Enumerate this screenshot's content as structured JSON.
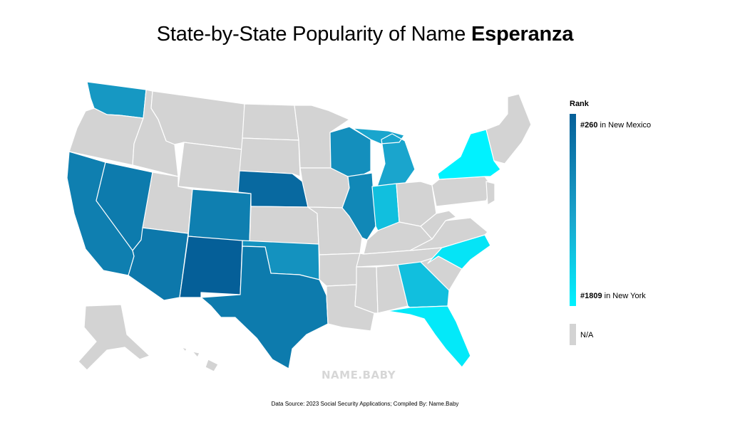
{
  "title": {
    "prefix": "State-by-State Popularity of Name",
    "name": "Esperanza"
  },
  "legend": {
    "heading": "Rank",
    "top": {
      "rank": "#260",
      "text": "in New Mexico"
    },
    "bottom": {
      "rank": "#1809",
      "text": "in New York"
    },
    "na": "N/A"
  },
  "watermark": "NAME.BABY",
  "source": "Data Source: 2023 Social Security Applications; Compiled By: Name.Baby",
  "colors": {
    "na": "#d3d3d3",
    "top": "#055f98",
    "bottom": "#00f2ff"
  },
  "rank_range": [
    260,
    1809
  ],
  "states": [
    {
      "id": "WA",
      "name": "Washington",
      "intensity": 0.55
    },
    {
      "id": "OR",
      "name": "Oregon",
      "intensity": null
    },
    {
      "id": "CA",
      "name": "California",
      "intensity": 0.75
    },
    {
      "id": "NV",
      "name": "Nevada",
      "intensity": 0.78
    },
    {
      "id": "ID",
      "name": "Idaho",
      "intensity": null
    },
    {
      "id": "MT",
      "name": "Montana",
      "intensity": null
    },
    {
      "id": "WY",
      "name": "Wyoming",
      "intensity": null
    },
    {
      "id": "UT",
      "name": "Utah",
      "intensity": null
    },
    {
      "id": "AZ",
      "name": "Arizona",
      "intensity": 0.8
    },
    {
      "id": "CO",
      "name": "Colorado",
      "intensity": 0.75
    },
    {
      "id": "NM",
      "name": "New Mexico",
      "intensity": 1.0
    },
    {
      "id": "ND",
      "name": "North Dakota",
      "intensity": null
    },
    {
      "id": "SD",
      "name": "South Dakota",
      "intensity": null
    },
    {
      "id": "NE",
      "name": "Nebraska",
      "intensity": 0.92
    },
    {
      "id": "KS",
      "name": "Kansas",
      "intensity": null
    },
    {
      "id": "OK",
      "name": "Oklahoma",
      "intensity": 0.6
    },
    {
      "id": "TX",
      "name": "Texas",
      "intensity": 0.78
    },
    {
      "id": "MN",
      "name": "Minnesota",
      "intensity": null
    },
    {
      "id": "IA",
      "name": "Iowa",
      "intensity": null
    },
    {
      "id": "MO",
      "name": "Missouri",
      "intensity": null
    },
    {
      "id": "AR",
      "name": "Arkansas",
      "intensity": null
    },
    {
      "id": "LA",
      "name": "Louisiana",
      "intensity": null
    },
    {
      "id": "WI",
      "name": "Wisconsin",
      "intensity": 0.62
    },
    {
      "id": "IL",
      "name": "Illinois",
      "intensity": 0.68
    },
    {
      "id": "MI",
      "name": "Michigan",
      "intensity": 0.45
    },
    {
      "id": "IN",
      "name": "Indiana",
      "intensity": 0.3
    },
    {
      "id": "OH",
      "name": "Ohio",
      "intensity": null
    },
    {
      "id": "KY",
      "name": "Kentucky",
      "intensity": null
    },
    {
      "id": "TN",
      "name": "Tennessee",
      "intensity": null
    },
    {
      "id": "MS",
      "name": "Mississippi",
      "intensity": null
    },
    {
      "id": "AL",
      "name": "Alabama",
      "intensity": null
    },
    {
      "id": "GA",
      "name": "Georgia",
      "intensity": 0.3
    },
    {
      "id": "FL",
      "name": "Florida",
      "intensity": 0.05
    },
    {
      "id": "SC",
      "name": "South Carolina",
      "intensity": null
    },
    {
      "id": "NC",
      "name": "North Carolina",
      "intensity": 0.08
    },
    {
      "id": "VA",
      "name": "Virginia",
      "intensity": null
    },
    {
      "id": "WV",
      "name": "West Virginia",
      "intensity": null
    },
    {
      "id": "PA",
      "name": "Pennsylvania",
      "intensity": null
    },
    {
      "id": "NY",
      "name": "New York",
      "intensity": 0.0
    },
    {
      "id": "NJ",
      "name": "New Jersey",
      "intensity": null
    },
    {
      "id": "NE_STATES",
      "name": "New England",
      "intensity": null
    },
    {
      "id": "AK",
      "name": "Alaska",
      "intensity": null
    },
    {
      "id": "HI",
      "name": "Hawaii",
      "intensity": null
    }
  ]
}
